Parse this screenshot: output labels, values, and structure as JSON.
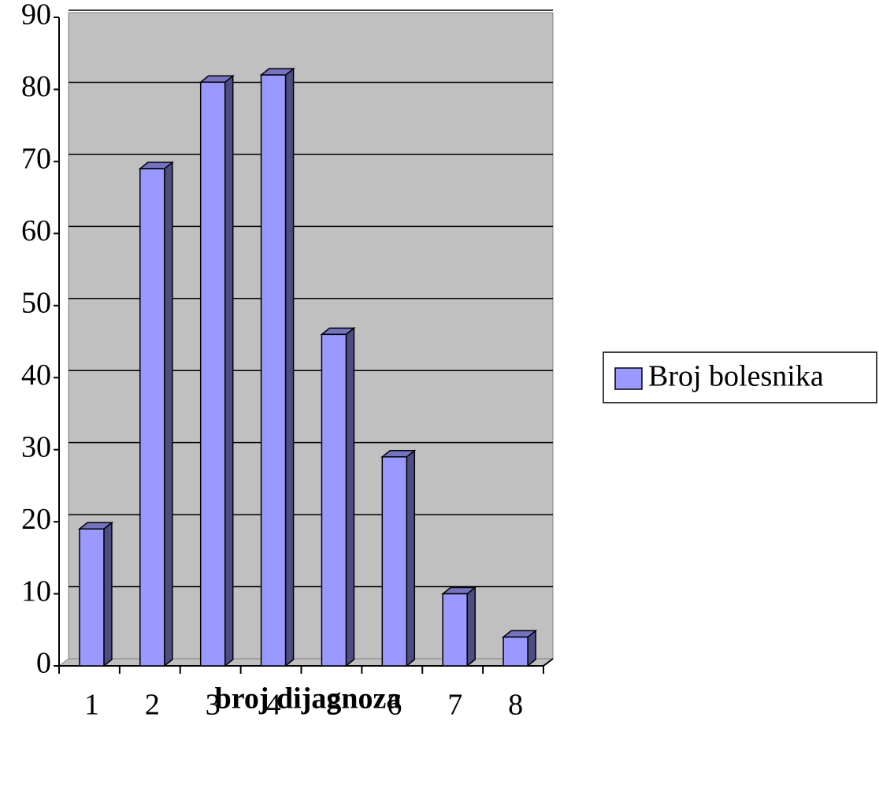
{
  "chart_data": {
    "type": "bar",
    "x_label": "broj dijagnoza",
    "categories": [
      "1",
      "2",
      "3",
      "4",
      "5",
      "6",
      "7",
      "8"
    ],
    "series": [
      {
        "name": "Broj bolesnika",
        "color": "#9999ff",
        "values": [
          19,
          69,
          81,
          82,
          46,
          29,
          10,
          4
        ]
      }
    ],
    "ylim": [
      0,
      90
    ],
    "yticks": [
      0,
      10,
      20,
      30,
      40,
      50,
      60,
      70,
      80,
      90
    ],
    "grid": true,
    "legend": "right"
  }
}
